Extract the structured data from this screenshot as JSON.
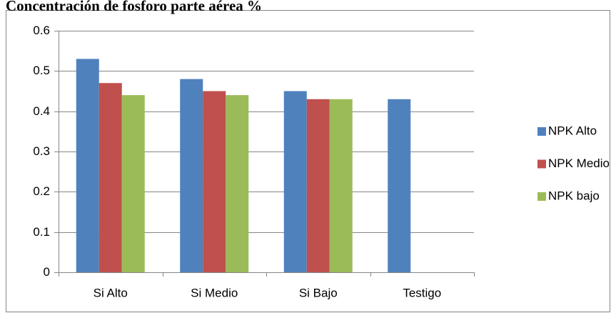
{
  "chart_data": {
    "type": "bar",
    "title": "Concentración de fosforo parte aérea %",
    "categories": [
      "Si Alto",
      "Si Medio",
      "Si Bajo",
      "Testigo"
    ],
    "series": [
      {
        "name": "NPK Alto",
        "color": "#4f81bd",
        "values": [
          0.53,
          0.48,
          0.45,
          0.43
        ]
      },
      {
        "name": "NPK Medio",
        "color": "#c0504d",
        "values": [
          0.47,
          0.45,
          0.43,
          null
        ]
      },
      {
        "name": "NPK bajo",
        "color": "#9bbb59",
        "values": [
          0.44,
          0.44,
          0.43,
          null
        ]
      }
    ],
    "ylim": [
      0,
      0.6
    ],
    "yticks": [
      0,
      0.1,
      0.2,
      0.3,
      0.4,
      0.5,
      0.6
    ],
    "grid": true,
    "legend": "right"
  }
}
